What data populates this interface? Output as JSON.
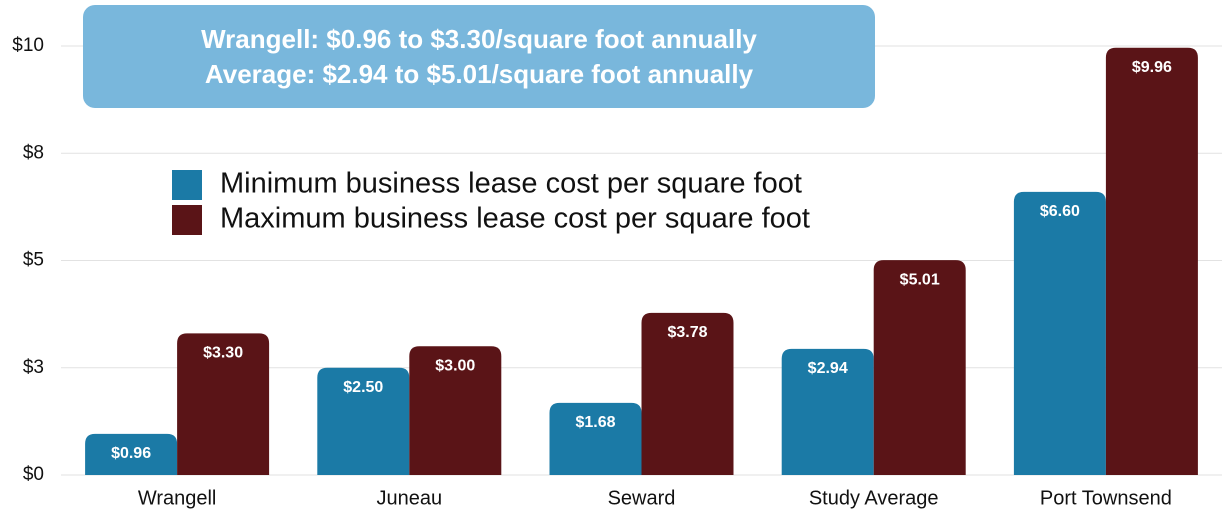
{
  "chart_data": {
    "type": "bar",
    "annotations": [
      "Wrangell: $0.96 to $3.30/square foot annually",
      "Average: $2.94 to $5.01/square foot annually"
    ],
    "categories": [
      "Wrangell",
      "Juneau",
      "Seward",
      "Study Average",
      "Port Townsend"
    ],
    "series": [
      {
        "name": "Minimum business lease cost per square foot",
        "color": "#1b7aa6",
        "values": [
          0.96,
          2.5,
          1.68,
          2.94,
          6.6
        ],
        "value_labels": [
          "$0.96",
          "$2.50",
          "$1.68",
          "$2.94",
          "$6.60"
        ]
      },
      {
        "name": "Maximum business lease cost per square foot",
        "color": "#5a1417",
        "values": [
          3.3,
          3.0,
          3.78,
          5.01,
          9.96
        ],
        "value_labels": [
          "$3.30",
          "$3.00",
          "$3.78",
          "$5.01",
          "$9.96"
        ]
      }
    ],
    "ylim": [
      0,
      10
    ],
    "yticks": [
      {
        "value": 0,
        "label": "$0"
      },
      {
        "value": 2.5,
        "label": "$3"
      },
      {
        "value": 5,
        "label": "$5"
      },
      {
        "value": 7.5,
        "label": "$8"
      },
      {
        "value": 10,
        "label": "$10"
      }
    ],
    "grid": true,
    "legend": "upper left"
  }
}
